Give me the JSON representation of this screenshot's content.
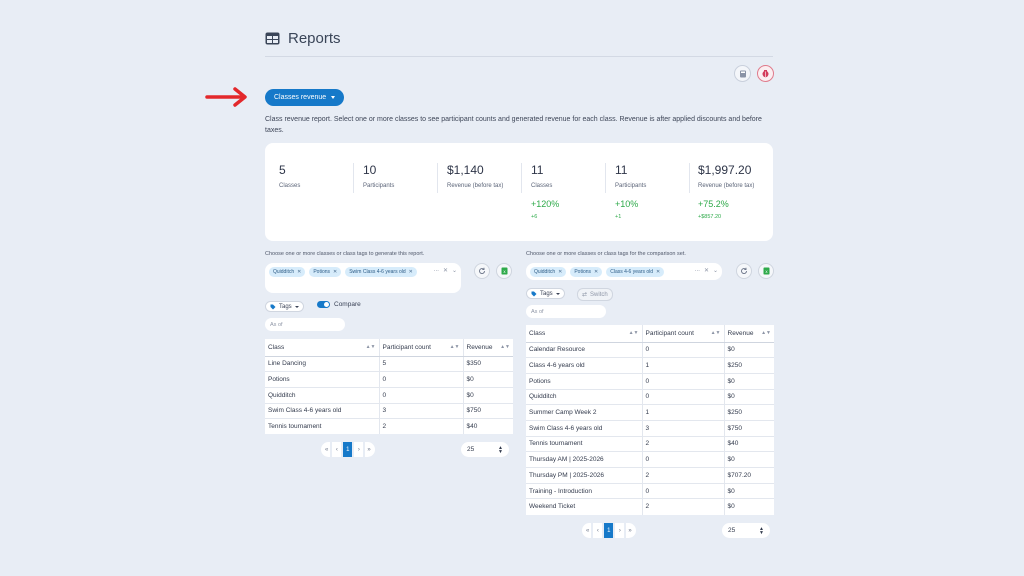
{
  "header": {
    "title": "Reports"
  },
  "report_selector": {
    "label": "Classes revenue"
  },
  "description": "Class revenue report. Select one or more classes to see participant counts and generated revenue for each class. Revenue is after applied discounts and before taxes.",
  "stats": {
    "main": [
      {
        "value": "5",
        "label": "Classes"
      },
      {
        "value": "10",
        "label": "Participants"
      },
      {
        "value": "$1,140",
        "label": "Revenue (before tax)"
      }
    ],
    "comparison": [
      {
        "value": "11",
        "label": "Classes",
        "pct": "+120%",
        "delta": "+6"
      },
      {
        "value": "11",
        "label": "Participants",
        "pct": "+10%",
        "delta": "+1"
      },
      {
        "value": "$1,997.20",
        "label": "Revenue (before tax)",
        "pct": "+75.2%",
        "delta": "+$857.20"
      }
    ]
  },
  "left": {
    "hint": "Choose one or more classes or class tags to generate this report.",
    "chips": [
      "Quidditch",
      "Potions",
      "Swim Class 4-6 years old"
    ],
    "overflow": "...",
    "tags_label": "Tags",
    "compare_label": "Compare",
    "asof_placeholder": "As of",
    "columns": [
      "Class",
      "Participant count",
      "Revenue"
    ],
    "rows": [
      [
        "Line Dancing",
        "5",
        "$350"
      ],
      [
        "Potions",
        "0",
        "$0"
      ],
      [
        "Quidditch",
        "0",
        "$0"
      ],
      [
        "Swim Class 4-6 years old",
        "3",
        "$750"
      ],
      [
        "Tennis tournament",
        "2",
        "$40"
      ]
    ],
    "pager": {
      "first": "«",
      "prev": "‹",
      "page": "1",
      "next": "›",
      "last": "»"
    },
    "page_size": "25"
  },
  "right": {
    "hint": "Choose one or more classes or class tags for the comparison set.",
    "chips": [
      "Quidditch",
      "Potions",
      "Class 4-6 years old"
    ],
    "overflow": "...",
    "tags_label": "Tags",
    "switch_label": "Switch",
    "asof_placeholder": "As of",
    "columns": [
      "Class",
      "Participant count",
      "Revenue"
    ],
    "rows": [
      [
        "Calendar Resource",
        "0",
        "$0"
      ],
      [
        "Class 4-6 years old",
        "1",
        "$250"
      ],
      [
        "Potions",
        "0",
        "$0"
      ],
      [
        "Quidditch",
        "0",
        "$0"
      ],
      [
        "Summer Camp Week 2",
        "1",
        "$250"
      ],
      [
        "Swim Class 4-6 years old",
        "3",
        "$750"
      ],
      [
        "Tennis tournament",
        "2",
        "$40"
      ],
      [
        "Thursday AM | 2025-2026",
        "0",
        "$0"
      ],
      [
        "Thursday PM | 2025-2026",
        "2",
        "$707.20"
      ],
      [
        "Training - Introduction",
        "0",
        "$0"
      ],
      [
        "Weekend Ticket",
        "2",
        "$0"
      ]
    ],
    "pager": {
      "first": "«",
      "prev": "‹",
      "page": "1",
      "next": "›",
      "last": "»"
    },
    "page_size": "25"
  },
  "icons": {
    "title": "table-icon",
    "arrow": "red-arrow-icon",
    "top_right": [
      "calculator-icon",
      "bug-icon"
    ],
    "refresh": "refresh-icon",
    "export": "spreadsheet-icon",
    "tag": "tag-icon",
    "switch": "swap-icon"
  },
  "colors": {
    "accent": "#1679c9",
    "positive": "#2eaa4a",
    "arrow": "#e3282b",
    "background": "#e8edf5"
  }
}
